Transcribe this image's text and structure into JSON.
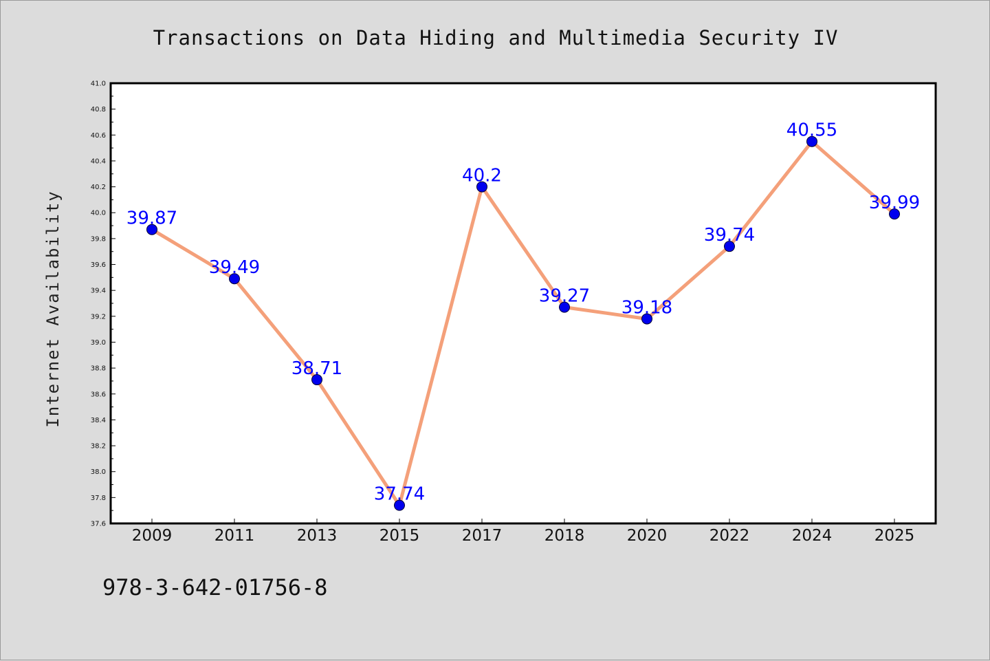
{
  "chart_data": {
    "type": "line",
    "title": "Transactions on Data Hiding and Multimedia Security IV",
    "xlabel": "",
    "ylabel": "Internet Availability",
    "categories": [
      "2009",
      "2011",
      "2013",
      "2015",
      "2017",
      "2018",
      "2020",
      "2022",
      "2024",
      "2025"
    ],
    "values": [
      39.87,
      39.49,
      38.71,
      37.74,
      40.2,
      39.27,
      39.18,
      39.74,
      40.55,
      39.99
    ],
    "data_labels": [
      "39.87",
      "39.49",
      "38.71",
      "37.74",
      "40.2",
      "39.27",
      "39.18",
      "39.74",
      "40.55",
      "39.99"
    ],
    "ylim": [
      37.6,
      41.0
    ],
    "yticks": [
      "37.6",
      "37.8",
      "38.0",
      "38.2",
      "38.4",
      "38.6",
      "38.8",
      "39.0",
      "39.2",
      "39.4",
      "39.6",
      "39.8",
      "40.0",
      "40.2",
      "40.4",
      "40.6",
      "40.8",
      "41.0"
    ],
    "grid": false,
    "legend": "none",
    "colors": {
      "line": "#f4a07a",
      "marker": "#0000ee",
      "marker_edge": "#000033",
      "data_label": "#0000ff",
      "plot_background": "#ffffff",
      "page_background": "#dcdcdc"
    }
  },
  "footer": {
    "text": "978-3-642-01756-8"
  }
}
